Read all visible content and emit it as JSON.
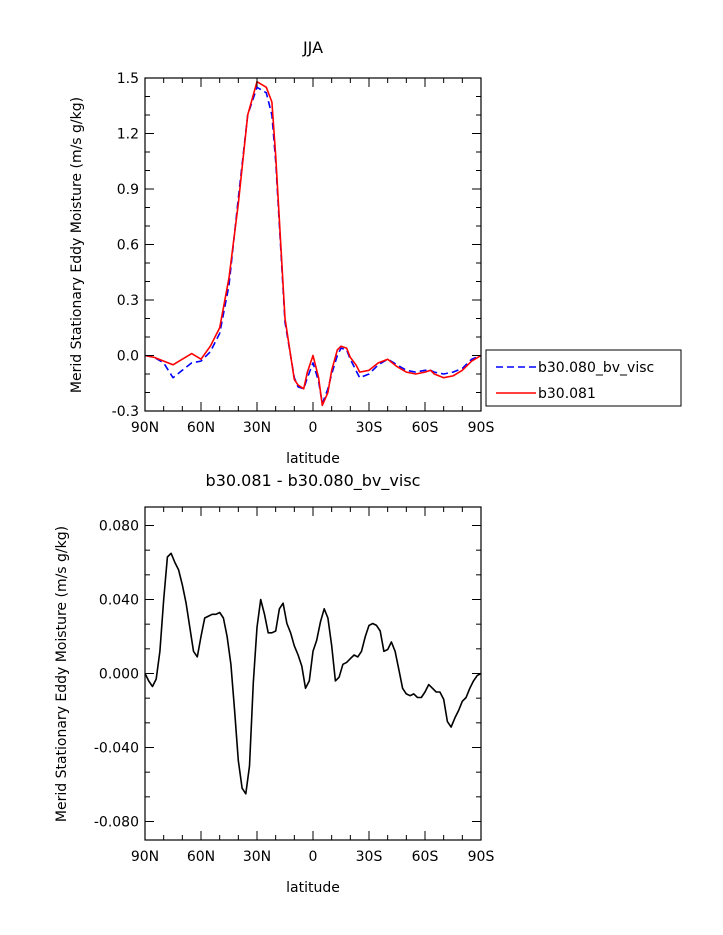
{
  "chart_data": [
    {
      "type": "line",
      "title": "JJA",
      "xlabel": "latitude",
      "ylabel": "Merid Stationary Eddy Moisture (m/s g/kg)",
      "xlim": [
        90,
        -90
      ],
      "ylim": [
        -0.3,
        1.5
      ],
      "x_ticks": [
        90,
        60,
        30,
        0,
        -30,
        -60,
        -90
      ],
      "x_tick_labels": [
        "90N",
        "60N",
        "30N",
        "0",
        "30S",
        "60S",
        "90S"
      ],
      "y_ticks": [
        -0.3,
        0.0,
        0.3,
        0.6,
        0.9,
        1.2,
        1.5
      ],
      "y_tick_labels": [
        "-0.3",
        "0.0",
        "0.3",
        "0.6",
        "0.9",
        "1.2",
        "1.5"
      ],
      "legend_position": "right",
      "x": [
        90,
        85,
        80,
        75,
        70,
        65,
        60,
        55,
        50,
        45,
        40,
        35,
        30,
        25,
        22,
        20,
        15,
        10,
        8,
        5,
        3,
        0,
        -3,
        -5,
        -8,
        -10,
        -13,
        -15,
        -18,
        -20,
        -23,
        -25,
        -30,
        -35,
        -40,
        -45,
        -50,
        -55,
        -60,
        -63,
        -65,
        -70,
        -75,
        -80,
        -85,
        -90
      ],
      "series": [
        {
          "name": "b30.080_bv_visc",
          "color": "#0000ff",
          "dash": "dashed",
          "values": [
            0.0,
            -0.01,
            -0.04,
            -0.12,
            -0.08,
            -0.04,
            -0.03,
            0.02,
            0.12,
            0.38,
            0.85,
            1.3,
            1.45,
            1.42,
            1.3,
            1.05,
            0.18,
            -0.12,
            -0.17,
            -0.18,
            -0.12,
            -0.04,
            -0.14,
            -0.26,
            -0.18,
            -0.1,
            0.0,
            0.04,
            0.03,
            -0.02,
            -0.08,
            -0.12,
            -0.1,
            -0.05,
            -0.02,
            -0.05,
            -0.08,
            -0.09,
            -0.08,
            -0.08,
            -0.09,
            -0.1,
            -0.09,
            -0.07,
            -0.02,
            0.0
          ]
        },
        {
          "name": "b30.081",
          "color": "#ff0000",
          "dash": "solid",
          "values": [
            0.0,
            -0.01,
            -0.03,
            -0.05,
            -0.02,
            0.01,
            -0.02,
            0.05,
            0.15,
            0.42,
            0.82,
            1.3,
            1.48,
            1.45,
            1.37,
            1.08,
            0.2,
            -0.13,
            -0.16,
            -0.18,
            -0.09,
            0.0,
            -0.12,
            -0.27,
            -0.2,
            -0.08,
            0.03,
            0.05,
            0.04,
            -0.01,
            -0.05,
            -0.09,
            -0.08,
            -0.04,
            -0.02,
            -0.06,
            -0.09,
            -0.1,
            -0.09,
            -0.08,
            -0.1,
            -0.12,
            -0.11,
            -0.08,
            -0.03,
            0.0
          ]
        }
      ]
    },
    {
      "type": "line",
      "title": "b30.081 - b30.080_bv_visc",
      "xlabel": "latitude",
      "ylabel": "Merid Stationary Eddy Moisture (m/s g/kg)",
      "xlim": [
        90,
        -90
      ],
      "ylim": [
        -0.09,
        0.09
      ],
      "x_ticks": [
        90,
        60,
        30,
        0,
        -30,
        -60,
        -90
      ],
      "x_tick_labels": [
        "90N",
        "60N",
        "30N",
        "0",
        "30S",
        "60S",
        "90S"
      ],
      "y_ticks": [
        -0.08,
        -0.04,
        0.0,
        0.04,
        0.08
      ],
      "y_tick_labels": [
        "-0.080",
        "-0.040",
        "0.000",
        "0.040",
        "0.080"
      ],
      "x": [
        90,
        88,
        86,
        84,
        82,
        80,
        78,
        76,
        74,
        72,
        70,
        68,
        66,
        64,
        62,
        60,
        58,
        56,
        54,
        52,
        50,
        48,
        46,
        44,
        42,
        40,
        38,
        36,
        34,
        32,
        30,
        28,
        26,
        24,
        22,
        20,
        18,
        16,
        14,
        12,
        10,
        8,
        6,
        4,
        2,
        0,
        -2,
        -4,
        -6,
        -8,
        -10,
        -12,
        -14,
        -16,
        -18,
        -20,
        -22,
        -24,
        -26,
        -28,
        -30,
        -32,
        -34,
        -36,
        -38,
        -40,
        -42,
        -44,
        -46,
        -48,
        -50,
        -52,
        -54,
        -56,
        -58,
        -60,
        -62,
        -64,
        -66,
        -68,
        -70,
        -72,
        -74,
        -76,
        -78,
        -80,
        -82,
        -84,
        -86,
        -88,
        -90
      ],
      "series": [
        {
          "name": "",
          "color": "#000000",
          "dash": "solid",
          "values": [
            0.0,
            -0.004,
            -0.007,
            -0.003,
            0.012,
            0.04,
            0.063,
            0.065,
            0.06,
            0.056,
            0.048,
            0.038,
            0.025,
            0.012,
            0.009,
            0.02,
            0.03,
            0.031,
            0.032,
            0.032,
            0.033,
            0.03,
            0.02,
            0.005,
            -0.02,
            -0.047,
            -0.062,
            -0.065,
            -0.05,
            -0.005,
            0.025,
            0.04,
            0.032,
            0.022,
            0.022,
            0.023,
            0.035,
            0.038,
            0.027,
            0.022,
            0.015,
            0.01,
            0.004,
            -0.008,
            -0.004,
            0.012,
            0.018,
            0.028,
            0.035,
            0.03,
            0.015,
            -0.004,
            -0.002,
            0.005,
            0.006,
            0.008,
            0.01,
            0.009,
            0.012,
            0.02,
            0.026,
            0.027,
            0.026,
            0.023,
            0.012,
            0.013,
            0.017,
            0.012,
            0.002,
            -0.008,
            -0.011,
            -0.012,
            -0.011,
            -0.013,
            -0.013,
            -0.01,
            -0.006,
            -0.008,
            -0.01,
            -0.01,
            -0.014,
            -0.026,
            -0.029,
            -0.024,
            -0.02,
            -0.015,
            -0.013,
            -0.008,
            -0.004,
            -0.001,
            0.0
          ]
        }
      ]
    }
  ]
}
